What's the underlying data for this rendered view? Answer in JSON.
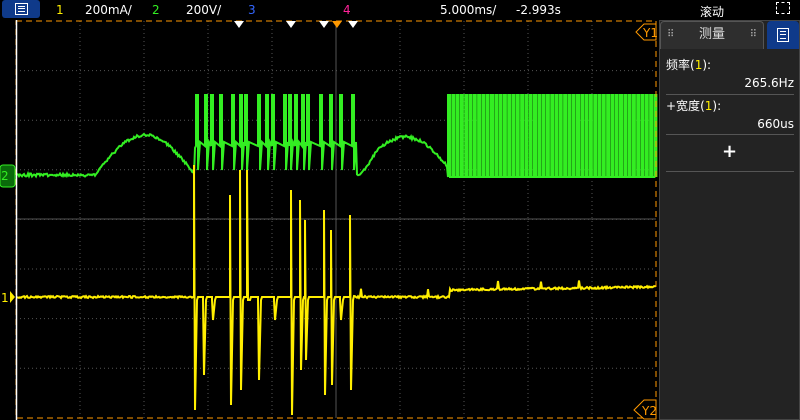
{
  "header": {
    "ch1_num": "1",
    "ch1_scale": "200mA/",
    "ch2_num": "2",
    "ch2_scale": "200V/",
    "ch3_num": "3",
    "ch4_num": "4",
    "timebase": "5.000ms/",
    "delay": "-2.993s",
    "mode": "滚动"
  },
  "colors": {
    "ch1": "#ffee00",
    "ch2": "#33ee22",
    "ch3": "#3366ff",
    "ch4": "#ff2299",
    "cursor": "#ff9900",
    "menu": "#0f3a8a"
  },
  "cursors": {
    "y1": "Y1",
    "y2": "Y2"
  },
  "markers": {
    "ch1": "1",
    "ch2": "2"
  },
  "panel": {
    "title": "测量",
    "items": [
      {
        "label": "频率",
        "src": "1",
        "value": "265.6Hz"
      },
      {
        "label": "+宽度",
        "src": "1",
        "value": "660us"
      }
    ],
    "add_label": "+"
  }
}
